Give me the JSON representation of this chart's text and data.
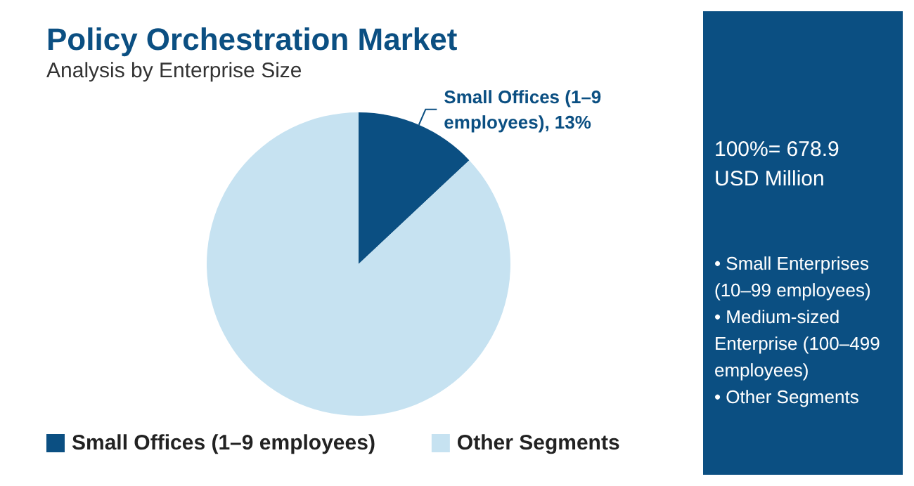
{
  "chart_data": {
    "type": "pie",
    "title": "Policy Orchestration Market",
    "subtitle": "Analysis by Enterprise Size",
    "categories": [
      "Small Offices (1–9 employees)",
      "Other Segments"
    ],
    "values": [
      13,
      87
    ],
    "colors": [
      "#0b4f82",
      "#c6e2f1"
    ],
    "value_labels": [
      "Small Offices (1–9 employees), 13%",
      null
    ],
    "legend": "bottom",
    "annotations": [
      "100%= 678.9 USD Million",
      "• Small Enterprises (10–99 employees)",
      "• Medium-sized Enterprise (100–499 employees)",
      "• Other Segments"
    ]
  }
}
